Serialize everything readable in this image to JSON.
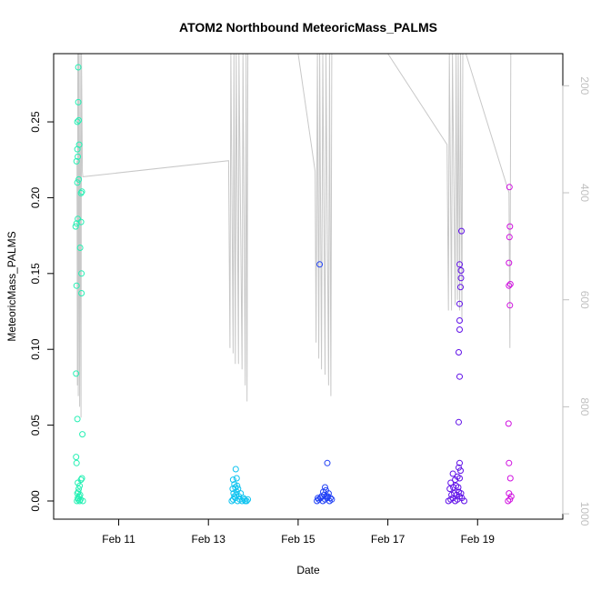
{
  "chart_data": {
    "type": "scatter",
    "title": "ATOM2 Northbound MeteoricMass_PALMS",
    "xlabel": "Date",
    "ylabel": "MeteoricMass_PALMS",
    "x_ticks": [
      "Feb 11",
      "Feb 13",
      "Feb 15",
      "Feb 17",
      "Feb 19"
    ],
    "x_tick_days": [
      11,
      13,
      15,
      17,
      19
    ],
    "xlim_days": [
      9.55,
      20.9
    ],
    "y_ticks": [
      "0.00",
      "0.05",
      "0.10",
      "0.15",
      "0.20",
      "0.25"
    ],
    "y_tick_values": [
      0.0,
      0.05,
      0.1,
      0.15,
      0.2,
      0.25
    ],
    "ylim": [
      -0.012,
      0.295
    ],
    "right_axis": {
      "label": "",
      "ticks": [
        "200",
        "400",
        "600",
        "800",
        "1000"
      ],
      "tick_values": [
        200,
        400,
        600,
        800,
        1000
      ],
      "range": [
        140,
        1010
      ],
      "inverted": true,
      "color": "#c0c0c0"
    },
    "grid": false,
    "legend": "none",
    "series": [
      {
        "color": "#26f0b4",
        "points": [
          [
            10.07,
            0.0
          ],
          [
            10.1,
            0.001
          ],
          [
            10.09,
            0.002
          ],
          [
            10.12,
            0.003
          ],
          [
            10.14,
            0.004
          ],
          [
            10.08,
            0.005
          ],
          [
            10.1,
            0.006
          ],
          [
            10.11,
            0.008
          ],
          [
            10.13,
            0.01
          ],
          [
            10.09,
            0.012
          ],
          [
            10.16,
            0.014
          ],
          [
            10.18,
            0.015
          ],
          [
            10.06,
            0.025
          ],
          [
            10.05,
            0.029
          ],
          [
            10.19,
            0.044
          ],
          [
            10.08,
            0.054
          ],
          [
            10.05,
            0.084
          ],
          [
            10.17,
            0.137
          ],
          [
            10.06,
            0.142
          ],
          [
            10.17,
            0.15
          ],
          [
            10.14,
            0.167
          ],
          [
            10.04,
            0.181
          ],
          [
            10.06,
            0.183
          ],
          [
            10.09,
            0.186
          ],
          [
            10.16,
            0.184
          ],
          [
            10.08,
            0.21
          ],
          [
            10.11,
            0.212
          ],
          [
            10.16,
            0.203
          ],
          [
            10.18,
            0.204
          ],
          [
            10.06,
            0.224
          ],
          [
            10.09,
            0.227
          ],
          [
            10.08,
            0.232
          ],
          [
            10.12,
            0.235
          ],
          [
            10.08,
            0.25
          ],
          [
            10.11,
            0.251
          ],
          [
            10.1,
            0.263
          ],
          [
            10.1,
            0.286
          ],
          [
            10.15,
            0.001
          ],
          [
            10.2,
            0.0
          ],
          [
            10.13,
            0.0
          ]
        ]
      },
      {
        "color": "#10c4f0",
        "points": [
          [
            13.52,
            0.0
          ],
          [
            13.55,
            0.001
          ],
          [
            13.6,
            0.002
          ],
          [
            13.65,
            0.0
          ],
          [
            13.7,
            0.001
          ],
          [
            13.75,
            0.0
          ],
          [
            13.8,
            0.001
          ],
          [
            13.85,
            0.0
          ],
          [
            13.58,
            0.003
          ],
          [
            13.62,
            0.004
          ],
          [
            13.68,
            0.003
          ],
          [
            13.56,
            0.005
          ],
          [
            13.63,
            0.006
          ],
          [
            13.72,
            0.005
          ],
          [
            13.54,
            0.008
          ],
          [
            13.6,
            0.009
          ],
          [
            13.66,
            0.008
          ],
          [
            13.58,
            0.011
          ],
          [
            13.64,
            0.01
          ],
          [
            13.55,
            0.014
          ],
          [
            13.63,
            0.015
          ],
          [
            13.61,
            0.021
          ],
          [
            13.78,
            0.002
          ],
          [
            13.82,
            0.0
          ],
          [
            13.88,
            0.001
          ]
        ]
      },
      {
        "color": "#2040f5",
        "points": [
          [
            15.42,
            0.0
          ],
          [
            15.46,
            0.001
          ],
          [
            15.5,
            0.002
          ],
          [
            15.55,
            0.0
          ],
          [
            15.6,
            0.001
          ],
          [
            15.65,
            0.002
          ],
          [
            15.7,
            0.0
          ],
          [
            15.75,
            0.001
          ],
          [
            15.52,
            0.003
          ],
          [
            15.58,
            0.004
          ],
          [
            15.63,
            0.003
          ],
          [
            15.68,
            0.005
          ],
          [
            15.56,
            0.006
          ],
          [
            15.62,
            0.007
          ],
          [
            15.6,
            0.009
          ],
          [
            15.66,
            0.003
          ],
          [
            15.44,
            0.002
          ],
          [
            15.48,
            0.156
          ],
          [
            15.65,
            0.025
          ],
          [
            15.72,
            0.002
          ]
        ]
      },
      {
        "color": "#6010e8",
        "points": [
          [
            18.35,
            0.0
          ],
          [
            18.4,
            0.001
          ],
          [
            18.45,
            0.002
          ],
          [
            18.5,
            0.0
          ],
          [
            18.55,
            0.001
          ],
          [
            18.6,
            0.003
          ],
          [
            18.65,
            0.002
          ],
          [
            18.7,
            0.0
          ],
          [
            18.42,
            0.004
          ],
          [
            18.48,
            0.005
          ],
          [
            18.53,
            0.004
          ],
          [
            18.58,
            0.006
          ],
          [
            18.63,
            0.005
          ],
          [
            18.38,
            0.008
          ],
          [
            18.46,
            0.009
          ],
          [
            18.52,
            0.01
          ],
          [
            18.57,
            0.009
          ],
          [
            18.4,
            0.012
          ],
          [
            18.5,
            0.014
          ],
          [
            18.55,
            0.016
          ],
          [
            18.6,
            0.015
          ],
          [
            18.45,
            0.018
          ],
          [
            18.62,
            0.02
          ],
          [
            18.58,
            0.022
          ],
          [
            18.6,
            0.025
          ],
          [
            18.58,
            0.052
          ],
          [
            18.6,
            0.082
          ],
          [
            18.58,
            0.098
          ],
          [
            18.6,
            0.113
          ],
          [
            18.6,
            0.119
          ],
          [
            18.6,
            0.13
          ],
          [
            18.62,
            0.141
          ],
          [
            18.63,
            0.147
          ],
          [
            18.63,
            0.152
          ],
          [
            18.6,
            0.156
          ],
          [
            18.64,
            0.178
          ]
        ]
      },
      {
        "color": "#d010e0",
        "points": [
          [
            19.68,
            0.0
          ],
          [
            19.72,
            0.001
          ],
          [
            19.75,
            0.003
          ],
          [
            19.7,
            0.005
          ],
          [
            19.73,
            0.015
          ],
          [
            19.7,
            0.025
          ],
          [
            19.69,
            0.051
          ],
          [
            19.72,
            0.129
          ],
          [
            19.7,
            0.142
          ],
          [
            19.73,
            0.143
          ],
          [
            19.7,
            0.157
          ],
          [
            19.71,
            0.174
          ],
          [
            19.72,
            0.181
          ],
          [
            19.71,
            0.207
          ]
        ]
      }
    ],
    "altitude_trace": {
      "color": "#c8c8c8",
      "points": [
        [
          10.07,
          340
        ],
        [
          10.08,
          760
        ],
        [
          10.09,
          140
        ],
        [
          10.1,
          780
        ],
        [
          10.11,
          140
        ],
        [
          10.13,
          800
        ],
        [
          10.14,
          140
        ],
        [
          10.16,
          820
        ],
        [
          10.17,
          140
        ],
        [
          10.19,
          360
        ],
        [
          10.2,
          370
        ],
        [
          13.45,
          340
        ],
        [
          13.48,
          690
        ],
        [
          13.5,
          140
        ],
        [
          13.55,
          700
        ],
        [
          13.57,
          140
        ],
        [
          13.6,
          720
        ],
        [
          13.62,
          140
        ],
        [
          13.67,
          720
        ],
        [
          13.68,
          140
        ],
        [
          13.75,
          730
        ],
        [
          13.77,
          140
        ],
        [
          13.82,
          760
        ],
        [
          13.84,
          140
        ],
        [
          13.86,
          790
        ],
        [
          13.88,
          140
        ],
        [
          15.0,
          140
        ],
        [
          15.38,
          360
        ],
        [
          15.4,
          680
        ],
        [
          15.43,
          140
        ],
        [
          15.46,
          710
        ],
        [
          15.48,
          140
        ],
        [
          15.52,
          730
        ],
        [
          15.55,
          140
        ],
        [
          15.6,
          740
        ],
        [
          15.62,
          140
        ],
        [
          15.68,
          760
        ],
        [
          15.7,
          140
        ],
        [
          15.73,
          780
        ],
        [
          15.75,
          140
        ],
        [
          17.0,
          140
        ],
        [
          18.32,
          310
        ],
        [
          18.35,
          620
        ],
        [
          18.37,
          140
        ],
        [
          18.42,
          620
        ],
        [
          18.44,
          140
        ],
        [
          18.5,
          610
        ],
        [
          18.52,
          140
        ],
        [
          18.55,
          600
        ],
        [
          18.57,
          140
        ],
        [
          18.6,
          620
        ],
        [
          18.62,
          140
        ],
        [
          18.65,
          640
        ],
        [
          18.67,
          140
        ],
        [
          18.74,
          140
        ],
        [
          19.7,
          400
        ],
        [
          19.72,
          690
        ],
        [
          19.74,
          140
        ]
      ]
    }
  }
}
